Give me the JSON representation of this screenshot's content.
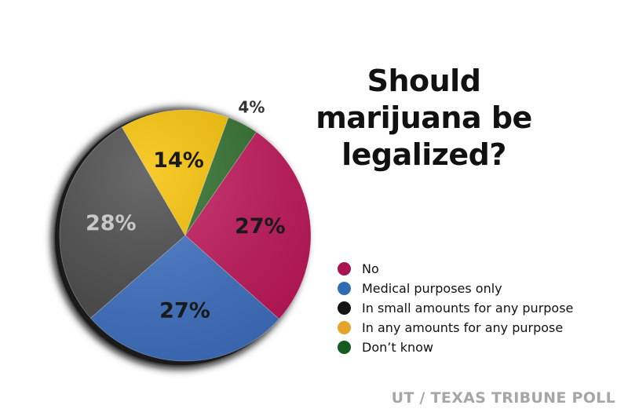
{
  "chart_data": {
    "type": "pie",
    "title": "Should marijuana be legalized?",
    "source": "UT / TEXAS TRIBUNE POLL",
    "series": [
      {
        "name": "No",
        "value": 27,
        "label": "27%",
        "color": "#c2185b"
      },
      {
        "name": "Medical purposes only",
        "value": 27,
        "label": "27%",
        "color": "#3f72c4"
      },
      {
        "name": "In small amounts for any purpose",
        "value": 28,
        "label": "28%",
        "color": "#4a4a4a"
      },
      {
        "name": "In any amounts for any purpose",
        "value": 14,
        "label": "14%",
        "color": "#f7c000"
      },
      {
        "name": "Don’t know",
        "value": 4,
        "label": "4%",
        "color": "#2e6e2a"
      }
    ],
    "legend": [
      {
        "label": "No",
        "color": "#a8124f"
      },
      {
        "label": "Medical purposes only",
        "color": "#2f6db3"
      },
      {
        "label": "In small amounts for any purpose",
        "color": "#151515"
      },
      {
        "label": "In any amounts for any purpose",
        "color": "#e3a52a"
      },
      {
        "label": "Don’t know",
        "color": "#155b20"
      }
    ],
    "legend_position": "right"
  }
}
